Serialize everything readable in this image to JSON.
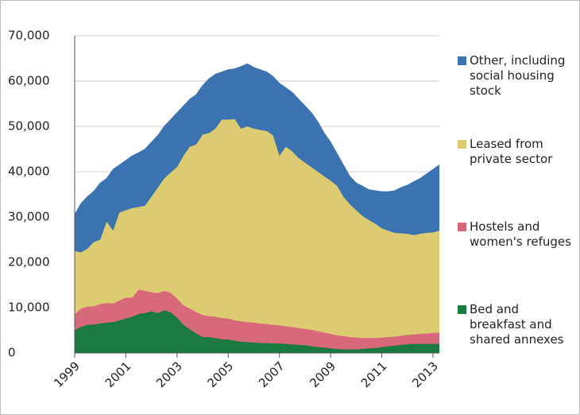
{
  "chart_data": {
    "type": "stacked-area",
    "x": [
      1999,
      1999.25,
      1999.5,
      1999.75,
      2000,
      2000.25,
      2000.5,
      2000.75,
      2001,
      2001.25,
      2001.5,
      2001.75,
      2002,
      2002.25,
      2002.5,
      2002.75,
      2003,
      2003.25,
      2003.5,
      2003.75,
      2004,
      2004.25,
      2004.5,
      2004.75,
      2005,
      2005.25,
      2005.5,
      2005.75,
      2006,
      2006.25,
      2006.5,
      2006.75,
      2007,
      2007.25,
      2007.5,
      2007.75,
      2008,
      2008.25,
      2008.5,
      2008.75,
      2009,
      2009.25,
      2009.5,
      2009.75,
      2010,
      2010.25,
      2010.5,
      2010.75,
      2011,
      2011.25,
      2011.5,
      2011.75,
      2012,
      2012.25,
      2012.5,
      2012.75,
      2013,
      2013.25
    ],
    "series": [
      {
        "name": "Bed and breakfast and shared annexes",
        "color": "#1b7a3f",
        "values": [
          5000,
          5800,
          6200,
          6300,
          6500,
          6700,
          6800,
          7200,
          7600,
          8000,
          8600,
          8800,
          9200,
          8800,
          9400,
          9000,
          7800,
          6200,
          5200,
          4300,
          3500,
          3500,
          3300,
          3000,
          3000,
          2700,
          2500,
          2400,
          2300,
          2200,
          2200,
          2100,
          2100,
          2000,
          1900,
          1800,
          1700,
          1500,
          1300,
          1200,
          1000,
          900,
          800,
          800,
          800,
          900,
          1000,
          1100,
          1300,
          1500,
          1600,
          1800,
          1900,
          2000,
          2000,
          2000,
          2000,
          2000
        ]
      },
      {
        "name": "Hostels and women's refuges",
        "color": "#d8697b",
        "values": [
          3500,
          4000,
          4000,
          4000,
          4300,
          4300,
          4100,
          4400,
          4600,
          4200,
          5400,
          4900,
          4200,
          4400,
          4300,
          4300,
          4200,
          4300,
          4600,
          4700,
          4900,
          4600,
          4700,
          4700,
          4600,
          4500,
          4500,
          4400,
          4400,
          4300,
          4200,
          4100,
          4000,
          3900,
          3800,
          3700,
          3600,
          3600,
          3500,
          3300,
          3200,
          3000,
          2900,
          2700,
          2600,
          2400,
          2300,
          2200,
          2100,
          2000,
          2000,
          2000,
          2100,
          2100,
          2200,
          2300,
          2400,
          2500
        ]
      },
      {
        "name": "Leased from private sector",
        "color": "#ddcb72",
        "values": [
          14000,
          12400,
          12800,
          14200,
          14200,
          18000,
          16100,
          19400,
          19300,
          19800,
          18200,
          18800,
          21100,
          23300,
          24800,
          26500,
          29000,
          33000,
          35700,
          37000,
          39800,
          40400,
          41500,
          43800,
          43900,
          44400,
          42500,
          43200,
          42800,
          42700,
          42600,
          41800,
          37400,
          39600,
          38800,
          37500,
          36700,
          35900,
          35200,
          34500,
          33800,
          33000,
          30800,
          29300,
          28100,
          26900,
          26000,
          25200,
          24100,
          23500,
          22900,
          22600,
          22300,
          21900,
          22100,
          22200,
          22200,
          22500
        ]
      },
      {
        "name": "Other, including social housing stock",
        "color": "#3b73b0",
        "values": [
          8000,
          10800,
          11500,
          11200,
          12500,
          9500,
          13500,
          10500,
          11000,
          11500,
          12000,
          12500,
          12000,
          11500,
          11500,
          11700,
          12000,
          11000,
          10500,
          11000,
          10800,
          12000,
          12000,
          10500,
          11000,
          11100,
          13700,
          13800,
          13500,
          13300,
          13000,
          13000,
          16000,
          13000,
          13000,
          13000,
          12500,
          12000,
          11000,
          9500,
          8500,
          7100,
          7000,
          6200,
          6000,
          6600,
          6700,
          7300,
          8100,
          8600,
          9300,
          10100,
          10700,
          11800,
          12200,
          13000,
          13900,
          14500
        ]
      }
    ],
    "xlim": [
      1999,
      2013.25
    ],
    "xticks": [
      1999,
      2001,
      2003,
      2005,
      2007,
      2009,
      2011,
      2013
    ],
    "ylim": [
      0,
      70000
    ],
    "yticks": [
      0,
      {
        "value": 10000,
        "label": "10,000"
      },
      {
        "value": 20000,
        "label": "20,000"
      },
      {
        "value": 30000,
        "label": "30,000"
      },
      {
        "value": 40000,
        "label": "40,000"
      },
      {
        "value": 50000,
        "label": "50,000"
      },
      {
        "value": 60000,
        "label": "60,000"
      },
      {
        "value": 70000,
        "label": "70,000"
      }
    ],
    "grid": true,
    "legend": "right"
  }
}
